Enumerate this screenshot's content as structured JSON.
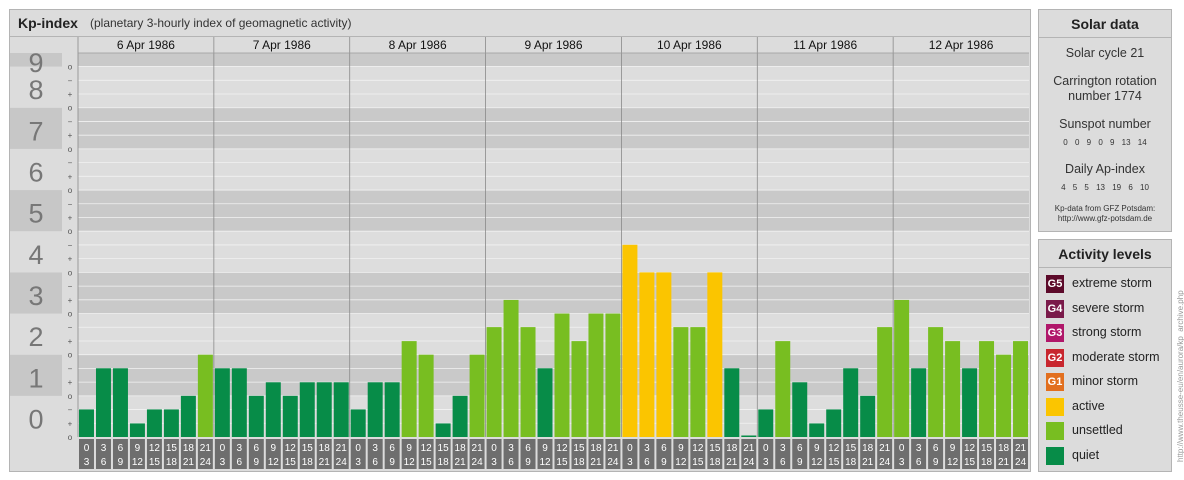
{
  "title": {
    "main": "Kp-index",
    "subtitle": "(planetary 3-hourly index of geomagnetic activity)"
  },
  "chart_data": {
    "type": "bar",
    "days": [
      "6 Apr 1986",
      "7 Apr 1986",
      "8 Apr 1986",
      "9 Apr 1986",
      "10 Apr 1986",
      "11 Apr 1986",
      "12 Apr 1986"
    ],
    "hour_starts": [
      "0",
      "3",
      "6",
      "9",
      "12",
      "15",
      "18",
      "21"
    ],
    "hour_ends": [
      "3",
      "6",
      "9",
      "12",
      "15",
      "18",
      "21",
      "24"
    ],
    "y_labels": [
      "0",
      "1",
      "2",
      "3",
      "4",
      "5",
      "6",
      "7",
      "8",
      "9"
    ],
    "sub_marks": [
      "o",
      "+",
      "−"
    ],
    "ylim": [
      0,
      9.33
    ],
    "levels": [
      {
        "min": 9,
        "color": "#5c0a2a"
      },
      {
        "min": 8,
        "color": "#7a1a4a"
      },
      {
        "min": 7,
        "color": "#b0176a"
      },
      {
        "min": 6,
        "color": "#c8262e"
      },
      {
        "min": 5,
        "color": "#e26f1e"
      },
      {
        "min": 4,
        "color": "#fbc500"
      },
      {
        "min": 2,
        "color": "#78be21"
      },
      {
        "min": 0,
        "color": "#078c48"
      }
    ],
    "values": [
      0.67,
      1.67,
      1.67,
      0.33,
      0.67,
      0.67,
      1.0,
      2.0,
      1.67,
      1.67,
      1.0,
      1.33,
      1.0,
      1.33,
      1.33,
      1.33,
      0.67,
      1.33,
      1.33,
      2.33,
      2.0,
      0.33,
      1.0,
      2.0,
      2.67,
      3.33,
      2.67,
      1.67,
      3.0,
      2.33,
      3.0,
      3.0,
      4.67,
      4.0,
      4.0,
      2.67,
      2.67,
      4.0,
      1.67,
      0.0,
      0.67,
      2.33,
      1.33,
      0.33,
      0.67,
      1.67,
      1.0,
      2.67,
      3.33,
      1.67,
      2.67,
      2.33,
      1.67,
      2.33,
      2.0,
      2.33
    ]
  },
  "solar": {
    "heading": "Solar data",
    "cycle": "Solar cycle 21",
    "carrington_line1": "Carrington rotation",
    "carrington_line2": "number 1774",
    "sunspot_label": "Sunspot number",
    "sunspot_values": "0 0 9 0 9 13 14",
    "ap_label": "Daily Ap-index",
    "ap_values": "4 5 5 13 19 6 10",
    "source_line1": "Kp-data from GFZ Potsdam:",
    "source_line2": "http://www.gfz-potsdam.de"
  },
  "activity": {
    "heading": "Activity levels",
    "items": [
      {
        "code": "G5",
        "label": "extreme storm",
        "color": "#5c0a2a"
      },
      {
        "code": "G4",
        "label": "severe storm",
        "color": "#7a1a4a"
      },
      {
        "code": "G3",
        "label": "strong storm",
        "color": "#b0176a"
      },
      {
        "code": "G2",
        "label": "moderate storm",
        "color": "#c8262e"
      },
      {
        "code": "G1",
        "label": "minor storm",
        "color": "#e26f1e"
      },
      {
        "code": "",
        "label": "active",
        "color": "#fbc500"
      },
      {
        "code": "",
        "label": "unsettled",
        "color": "#78be21"
      },
      {
        "code": "",
        "label": "quiet",
        "color": "#078c48"
      }
    ]
  },
  "watermark": "http://www.theusse-eu/en/aurora/kp_archive.php"
}
